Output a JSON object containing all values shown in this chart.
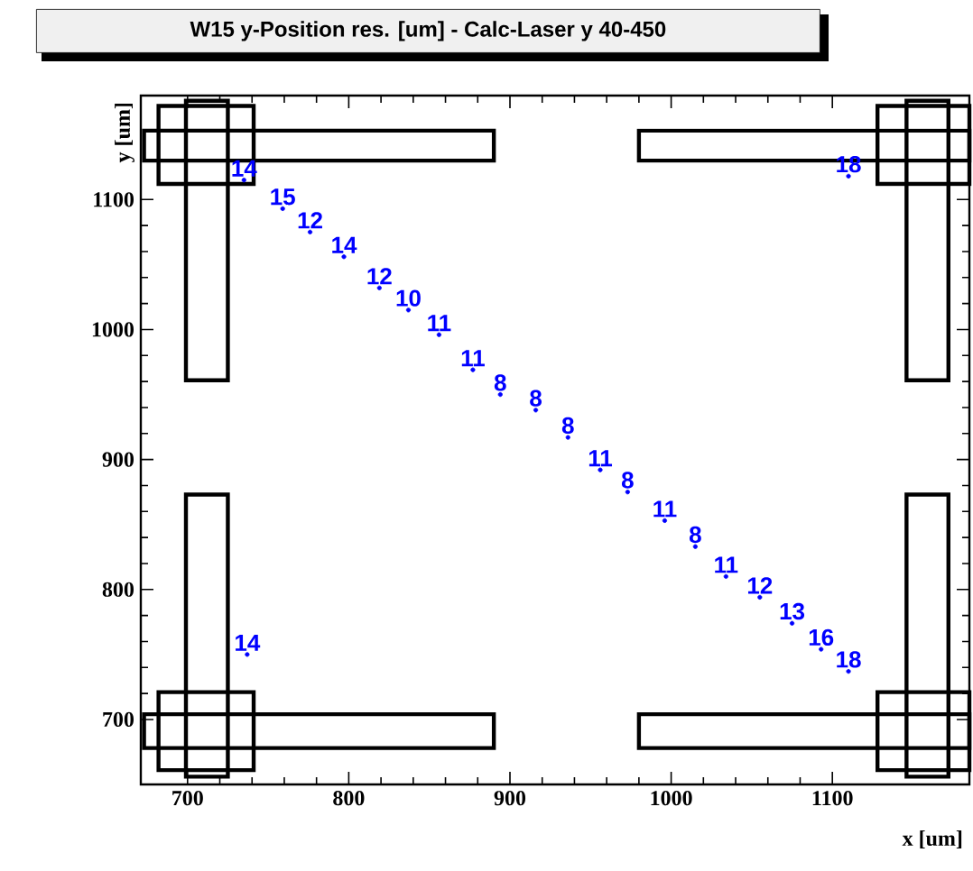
{
  "chart_data": {
    "type": "scatter",
    "title": "W15 y-Position res. [um] - Calc-Laser y 40-450",
    "xlabel": "x [um]",
    "ylabel": "y [um]",
    "x": [
      735,
      759,
      776,
      797,
      819,
      837,
      856,
      877,
      894,
      916,
      936,
      956,
      973,
      996,
      1015,
      1034,
      1055,
      1075,
      1093,
      1110,
      737,
      1110
    ],
    "values": [
      1115,
      1093,
      1075,
      1056,
      1032,
      1015,
      996,
      969,
      950,
      938,
      917,
      892,
      875,
      853,
      833,
      810,
      794,
      774,
      754,
      737,
      750,
      1118
    ],
    "annotations": [
      {
        "text": "14",
        "x": 735,
        "y": 1115
      },
      {
        "text": "15",
        "x": 759,
        "y": 1093
      },
      {
        "text": "12",
        "x": 776,
        "y": 1075
      },
      {
        "text": "14",
        "x": 797,
        "y": 1056
      },
      {
        "text": "12",
        "x": 819,
        "y": 1032
      },
      {
        "text": "10",
        "x": 837,
        "y": 1015
      },
      {
        "text": "11",
        "x": 856,
        "y": 996
      },
      {
        "text": "11",
        "x": 877,
        "y": 969
      },
      {
        "text": "8",
        "x": 894,
        "y": 950
      },
      {
        "text": "8",
        "x": 916,
        "y": 938
      },
      {
        "text": "8",
        "x": 936,
        "y": 917
      },
      {
        "text": "11",
        "x": 956,
        "y": 892
      },
      {
        "text": "8",
        "x": 973,
        "y": 875
      },
      {
        "text": "11",
        "x": 996,
        "y": 853
      },
      {
        "text": "8",
        "x": 1015,
        "y": 833
      },
      {
        "text": "11",
        "x": 1034,
        "y": 810
      },
      {
        "text": "12",
        "x": 1055,
        "y": 794
      },
      {
        "text": "13",
        "x": 1075,
        "y": 774
      },
      {
        "text": "16",
        "x": 1093,
        "y": 754
      },
      {
        "text": "18",
        "x": 1110,
        "y": 737
      },
      {
        "text": "14",
        "x": 737,
        "y": 750
      },
      {
        "text": "18",
        "x": 1110,
        "y": 1118
      }
    ],
    "color": "#0000ff",
    "marker": "circle",
    "xlim": [
      671,
      1185
    ],
    "ylim": [
      650,
      1180
    ],
    "xticks": [
      700,
      800,
      900,
      1000,
      1100
    ],
    "yticks": [
      700,
      800,
      900,
      1000,
      1100
    ]
  }
}
